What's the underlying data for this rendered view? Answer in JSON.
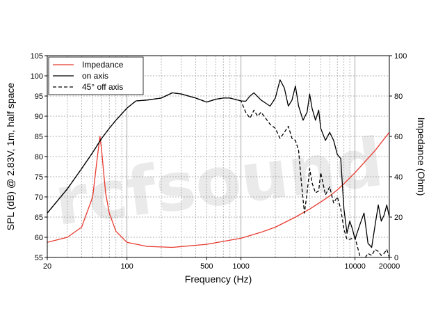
{
  "colors": {
    "impedance": "#e8392e",
    "on_axis": "#000000",
    "off_axis": "#000000",
    "grid": "#9a9a9a"
  },
  "watermark": "rcfsound",
  "chart_data": {
    "type": "line",
    "xscale": "log",
    "xlim": [
      20,
      20000
    ],
    "ylim_left": [
      55,
      105
    ],
    "ylim_right": [
      0,
      100
    ],
    "xlabel": "Frequency (Hz)",
    "ylabel_left": "SPL (dB) @ 2.83V, 1m, half space",
    "ylabel_right": "Impedance (Ohm)",
    "x_ticks": [
      {
        "value": 20,
        "label": "20"
      },
      {
        "value": 100,
        "label": "100"
      },
      {
        "value": 500,
        "label": "500"
      },
      {
        "value": 1000,
        "label": "1000"
      },
      {
        "value": 10000,
        "label": "10000"
      },
      {
        "value": 20000,
        "label": "20000"
      }
    ],
    "y_left_ticks": [
      55,
      60,
      65,
      70,
      75,
      80,
      85,
      90,
      95,
      100,
      105
    ],
    "y_right_ticks": [
      0,
      20,
      40,
      60,
      80,
      100
    ],
    "grid": true,
    "legend": {
      "position": "top-left"
    },
    "series": [
      {
        "name": "Impedance",
        "axis": "right",
        "style": "solid",
        "x": [
          20,
          30,
          40,
          50,
          55,
          58,
          60,
          62,
          65,
          70,
          80,
          100,
          150,
          250,
          500,
          1000,
          1500,
          2000,
          3000,
          4000,
          5000,
          6000,
          7000,
          8000,
          10000,
          15000,
          20000
        ],
        "y": [
          7.5,
          10,
          15,
          30,
          50,
          60,
          53,
          44,
          32,
          22,
          13,
          7.5,
          5.5,
          5,
          6.5,
          9.5,
          12.5,
          15,
          20,
          24,
          27.5,
          30.5,
          33.5,
          36.5,
          42,
          53,
          62
        ]
      },
      {
        "name": "on axis",
        "axis": "left",
        "style": "solid",
        "x": [
          20,
          30,
          40,
          50,
          60,
          70,
          80,
          100,
          120,
          150,
          200,
          250,
          300,
          400,
          500,
          600,
          700,
          800,
          1000,
          1100,
          1200,
          1300,
          1500,
          1800,
          2000,
          2200,
          2400,
          2600,
          2800,
          3000,
          3200,
          3500,
          3800,
          4000,
          4200,
          4500,
          4800,
          5000,
          5500,
          6000,
          6500,
          7000,
          7500,
          8000,
          8500,
          9000,
          9500,
          10000,
          11000,
          12000,
          13000,
          14000,
          15000,
          16000,
          17000,
          18000,
          19000,
          20000
        ],
        "y": [
          66,
          72,
          77,
          81,
          84.5,
          87,
          89,
          92,
          93.8,
          94,
          94.5,
          95.8,
          95.5,
          94.5,
          93.5,
          94.2,
          94.5,
          94.5,
          93.8,
          93.7,
          95,
          95.8,
          94,
          92.5,
          94.5,
          99,
          97,
          92.5,
          94,
          97.5,
          92.5,
          89,
          91,
          95.5,
          92,
          89,
          91.5,
          87,
          84,
          86,
          84,
          80.5,
          79.5,
          67,
          61,
          64,
          62,
          59.5,
          63,
          66,
          58.5,
          57.5,
          63,
          68,
          64,
          65.5,
          68,
          65
        ]
      },
      {
        "name": "45° off axis",
        "axis": "left",
        "style": "dashed",
        "x": [
          20,
          30,
          40,
          50,
          60,
          70,
          80,
          100,
          120,
          150,
          200,
          250,
          300,
          400,
          500,
          600,
          700,
          800,
          1000,
          1100,
          1200,
          1300,
          1400,
          1500,
          1800,
          2000,
          2200,
          2400,
          2600,
          2800,
          3000,
          3200,
          3400,
          3600,
          3800,
          4000,
          4200,
          4500,
          4800,
          5000,
          5500,
          6000,
          6500,
          7000,
          7500,
          8000,
          8500,
          9000,
          10000,
          11000,
          12000,
          13000,
          14000,
          15000,
          16000,
          17000,
          18000,
          19000,
          20000
        ],
        "y": [
          66,
          72,
          77,
          81,
          84.5,
          87,
          89,
          92,
          93.8,
          94,
          94.5,
          95.8,
          95.5,
          94.5,
          93.5,
          94.2,
          94.5,
          94.5,
          93.8,
          91,
          89.5,
          91.5,
          90,
          91,
          88,
          87,
          84.5,
          86,
          87.5,
          84.5,
          84,
          81.5,
          73,
          66,
          71,
          77,
          73.5,
          71,
          71.5,
          76,
          70.5,
          72.5,
          68.5,
          70,
          67,
          62,
          59.5,
          59.5,
          60,
          55.5,
          54.5,
          56,
          55.5,
          57,
          56.5,
          55.5,
          56,
          57,
          55
        ]
      }
    ]
  }
}
